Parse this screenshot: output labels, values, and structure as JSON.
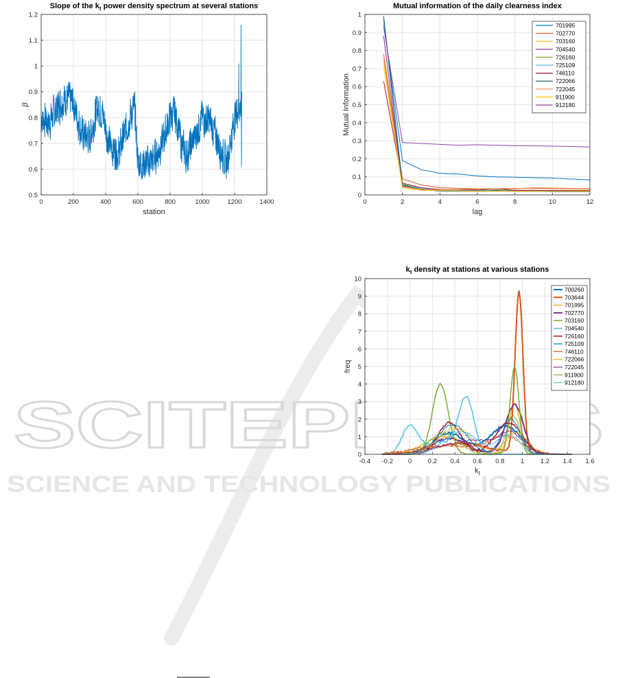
{
  "chart_data": [
    {
      "type": "line",
      "title": "Slope of the k",
      "title_sub": "t",
      "title_rest": " power density spectrum at several stations",
      "xlabel": "station",
      "ylabel": "β",
      "xlim": [
        0,
        1400
      ],
      "ylim": [
        0.5,
        1.2
      ],
      "xticks": [
        0,
        200,
        400,
        600,
        800,
        1000,
        1200,
        1400
      ],
      "yticks": [
        0.5,
        0.6,
        0.7,
        0.8,
        0.9,
        1.0,
        1.1,
        1.2
      ],
      "ytick_labels": [
        "0.5",
        "0.6",
        "0.7",
        "0.8",
        "0.9",
        "1",
        "1.1",
        "1.2"
      ],
      "grid": true,
      "color": "#0072bd",
      "series_profile": {
        "x": [
          0,
          50,
          100,
          150,
          200,
          250,
          300,
          350,
          380,
          420,
          480,
          550,
          580,
          600,
          650,
          700,
          750,
          800,
          830,
          870,
          900,
          950,
          1000,
          1050,
          1100,
          1150,
          1200,
          1230,
          1250
        ],
        "y": [
          0.8,
          0.78,
          0.84,
          0.88,
          0.86,
          0.74,
          0.72,
          0.84,
          0.82,
          0.7,
          0.66,
          0.8,
          0.84,
          0.63,
          0.62,
          0.64,
          0.7,
          0.8,
          0.82,
          0.7,
          0.65,
          0.72,
          0.8,
          0.78,
          0.7,
          0.62,
          0.8,
          0.85,
          0.82
        ]
      }
    },
    {
      "type": "line",
      "title": "Mutual information of the daily clearness index",
      "xlabel": "lag",
      "ylabel": "Mutual Information",
      "xlim": [
        0,
        12
      ],
      "ylim": [
        0,
        1
      ],
      "xticks": [
        0,
        2,
        4,
        6,
        8,
        10,
        12
      ],
      "yticks": [
        0,
        0.1,
        0.2,
        0.3,
        0.4,
        0.5,
        0.6,
        0.7,
        0.8,
        0.9,
        1
      ],
      "grid": true,
      "legend_position": "top-right",
      "x": [
        1,
        2,
        3,
        4,
        5,
        6,
        7,
        8,
        9,
        10,
        11,
        12
      ],
      "series": [
        {
          "name": "701995",
          "color": "#0072bd",
          "values": [
            0.95,
            0.19,
            0.14,
            0.12,
            0.115,
            0.105,
            0.1,
            0.098,
            0.095,
            0.093,
            0.088,
            0.083
          ]
        },
        {
          "name": "702770",
          "color": "#d95319",
          "values": [
            0.78,
            0.09,
            0.055,
            0.04,
            0.036,
            0.034,
            0.034,
            0.036,
            0.037,
            0.035,
            0.034,
            0.033
          ]
        },
        {
          "name": "703160",
          "color": "#edb120",
          "values": [
            0.75,
            0.045,
            0.03,
            0.025,
            0.025,
            0.025,
            0.025,
            0.025,
            0.025,
            0.025,
            0.025,
            0.025
          ]
        },
        {
          "name": "704540",
          "color": "#7e2f8e",
          "values": [
            0.88,
            0.05,
            0.035,
            0.03,
            0.028,
            0.027,
            0.026,
            0.025,
            0.025,
            0.024,
            0.024,
            0.023
          ]
        },
        {
          "name": "726160",
          "color": "#77ac30",
          "values": [
            0.98,
            0.06,
            0.03,
            0.025,
            0.022,
            0.022,
            0.03,
            0.02,
            0.02,
            0.02,
            0.02,
            0.02
          ]
        },
        {
          "name": "725109",
          "color": "#4dbeee",
          "values": [
            0.97,
            0.065,
            0.035,
            0.028,
            0.025,
            0.024,
            0.023,
            0.022,
            0.022,
            0.022,
            0.021,
            0.021
          ]
        },
        {
          "name": "746110",
          "color": "#a2142f",
          "values": [
            0.63,
            0.065,
            0.04,
            0.03,
            0.028,
            0.027,
            0.035,
            0.025,
            0.025,
            0.025,
            0.024,
            0.024
          ]
        },
        {
          "name": "722066",
          "color": "#0f5a6a",
          "values": [
            0.99,
            0.055,
            0.028,
            0.022,
            0.02,
            0.02,
            0.022,
            0.02,
            0.02,
            0.018,
            0.018,
            0.018
          ]
        },
        {
          "name": "722045",
          "color": "#f08a4b",
          "values": [
            0.77,
            0.045,
            0.03,
            0.028,
            0.03,
            0.033,
            0.035,
            0.034,
            0.04,
            0.038,
            0.036,
            0.035
          ]
        },
        {
          "name": "911900",
          "color": "#ffc107",
          "values": [
            0.72,
            0.04,
            0.025,
            0.025,
            0.022,
            0.02,
            0.02,
            0.02,
            0.02,
            0.02,
            0.02,
            0.02
          ]
        },
        {
          "name": "912180",
          "color": "#8e44ad",
          "values": [
            0.93,
            0.29,
            0.285,
            0.28,
            0.275,
            0.278,
            0.275,
            0.273,
            0.272,
            0.27,
            0.268,
            0.265
          ]
        }
      ]
    },
    {
      "type": "line",
      "title": "k",
      "title_sub": "t",
      "title_rest": " density at stations at various stations",
      "xlabel": "k",
      "xlabel_sub": "t",
      "ylabel": "freq",
      "xlim": [
        -0.4,
        1.6
      ],
      "ylim": [
        0,
        10
      ],
      "xticks": [
        -0.4,
        -0.2,
        0,
        0.2,
        0.4,
        0.6,
        0.8,
        1,
        1.2,
        1.4,
        1.6
      ],
      "xtick_labels": [
        "-0.4",
        "-0.2",
        "0",
        "0.2",
        "0.4",
        "0.6",
        "0.8",
        "1",
        "1.2",
        "1.4",
        "1.6"
      ],
      "yticks": [
        0,
        1,
        2,
        3,
        4,
        5,
        6,
        7,
        8,
        9,
        10
      ],
      "grid": true,
      "legend_position": "top-right",
      "series": [
        {
          "name": "700260",
          "color": "#0072bd",
          "width": 2,
          "peaks": [
            [
              0.35,
              1.2,
              0.14
            ],
            [
              0.85,
              1.6,
              0.14
            ]
          ]
        },
        {
          "name": "703644",
          "color": "#d95319",
          "width": 2,
          "peaks": [
            [
              0.97,
              9.2,
              0.035
            ],
            [
              0.45,
              0.6,
              0.25
            ]
          ]
        },
        {
          "name": "701995",
          "color": "#edb120",
          "width": 1.5,
          "peaks": [
            [
              0.93,
              2.9,
              0.05
            ],
            [
              0.3,
              1.0,
              0.17
            ]
          ]
        },
        {
          "name": "702770",
          "color": "#7e2f8e",
          "width": 2,
          "peaks": [
            [
              0.93,
              2.8,
              0.08
            ],
            [
              0.35,
              0.9,
              0.16
            ]
          ]
        },
        {
          "name": "703160",
          "color": "#77ac30",
          "width": 1.5,
          "peaks": [
            [
              0.27,
              4.0,
              0.07
            ],
            [
              0.93,
              5.0,
              0.04
            ]
          ]
        },
        {
          "name": "704540",
          "color": "#4dbeee",
          "width": 1.5,
          "peaks": [
            [
              0.0,
              1.6,
              0.07
            ],
            [
              0.5,
              3.2,
              0.07
            ],
            [
              0.26,
              0.7,
              0.12
            ]
          ]
        },
        {
          "name": "726160",
          "color": "#a2142f",
          "width": 1.5,
          "peaks": [
            [
              0.35,
              1.8,
              0.1
            ],
            [
              0.88,
              1.8,
              0.12
            ]
          ]
        },
        {
          "name": "725109",
          "color": "#0072bd",
          "width": 1,
          "peaks": [
            [
              0.38,
              1.7,
              0.13
            ],
            [
              0.9,
              2.0,
              0.08
            ]
          ]
        },
        {
          "name": "746110",
          "color": "#d95319",
          "width": 1,
          "peaks": [
            [
              0.3,
              0.5,
              0.25
            ],
            [
              0.85,
              1.0,
              0.15
            ]
          ]
        },
        {
          "name": "722066",
          "color": "#edb120",
          "width": 1,
          "peaks": [
            [
              0.4,
              1.5,
              0.15
            ],
            [
              0.95,
              1.2,
              0.1
            ]
          ]
        },
        {
          "name": "722045",
          "color": "#7e2f8e",
          "width": 1,
          "peaks": [
            [
              0.55,
              0.8,
              0.25
            ],
            [
              0.9,
              1.0,
              0.1
            ]
          ]
        },
        {
          "name": "911900",
          "color": "#77ac30",
          "width": 1,
          "peaks": [
            [
              0.3,
              1.2,
              0.13
            ],
            [
              0.92,
              2.2,
              0.06
            ]
          ]
        },
        {
          "name": "912180",
          "color": "#4dbeee",
          "width": 1,
          "peaks": [
            [
              0.45,
              1.3,
              0.15
            ],
            [
              0.88,
              1.1,
              0.1
            ]
          ]
        }
      ]
    }
  ],
  "watermark": {
    "main": "SCITEPRESS",
    "sub": "SCIENCE AND TECHNOLOGY PUBLICATIONS"
  }
}
